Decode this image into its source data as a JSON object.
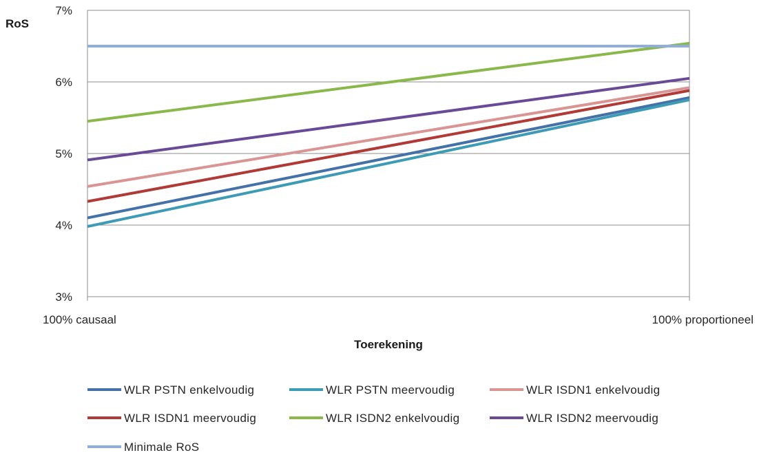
{
  "chart_data": {
    "type": "line",
    "title": "",
    "ylabel": "RoS",
    "xlabel": "Toerekening",
    "x": [
      "100% causaal",
      "100% proportioneel"
    ],
    "ylim": [
      3,
      7
    ],
    "yticks": [
      3,
      4,
      5,
      6,
      7
    ],
    "ytick_labels": [
      "3%",
      "4%",
      "5%",
      "6%",
      "7%"
    ],
    "grid": true,
    "legend_position": "bottom",
    "series": [
      {
        "name": "WLR PSTN enkelvoudig",
        "color": "#4472a8",
        "values": [
          4.1,
          5.78
        ]
      },
      {
        "name": "WLR PSTN meervoudig",
        "color": "#3e9bb5",
        "values": [
          3.98,
          5.75
        ]
      },
      {
        "name": "WLR ISDN1 enkelvoudig",
        "color": "#d99594",
        "values": [
          4.54,
          5.92
        ]
      },
      {
        "name": "WLR ISDN1 meervoudig",
        "color": "#b03a36",
        "values": [
          4.33,
          5.88
        ]
      },
      {
        "name": "WLR ISDN2 enkelvoudig",
        "color": "#8ab84a",
        "values": [
          5.45,
          6.54
        ]
      },
      {
        "name": "WLR ISDN2 meervoudig",
        "color": "#6a4a96",
        "values": [
          4.91,
          6.05
        ]
      },
      {
        "name": "Minimale RoS",
        "color": "#8faedc",
        "values": [
          6.5,
          6.5
        ]
      }
    ]
  }
}
